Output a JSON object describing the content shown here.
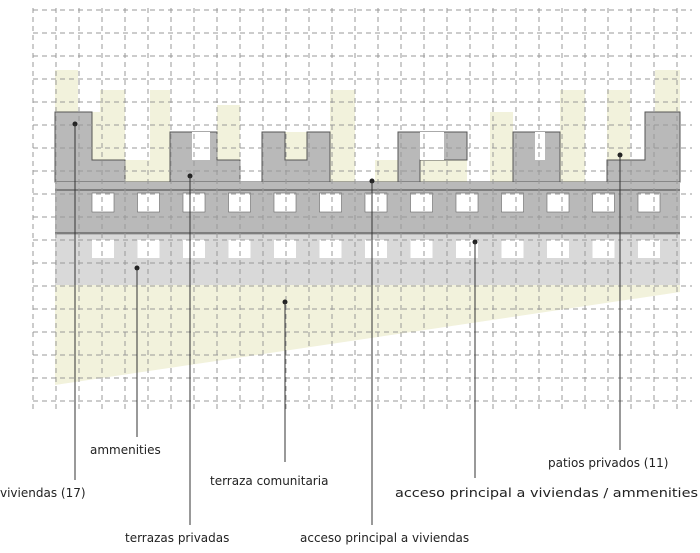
{
  "labels": [
    {
      "text": "viviendas (17)"
    },
    {
      "text": "ammenities"
    },
    {
      "text": "terrazas privadas"
    },
    {
      "text": "terraza comunitaria"
    },
    {
      "text": "acceso principal a viviendas"
    },
    {
      "text": "acceso principal a viviendas / ammenities"
    },
    {
      "text": "patios privados (11)"
    }
  ]
}
